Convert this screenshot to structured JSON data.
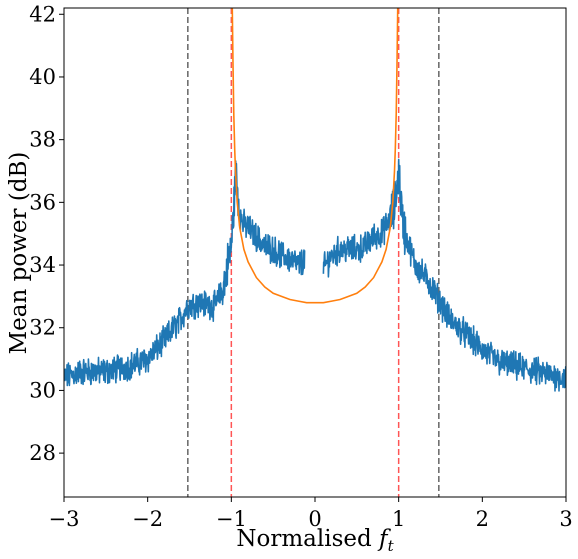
{
  "chart_data": {
    "type": "line",
    "title": "",
    "xlabel": "Normalised",
    "xlabel_symbol": "f",
    "xlabel_subscript": "t",
    "ylabel": "Mean power (dB)",
    "xlim": [
      -3,
      3
    ],
    "ylim": [
      26.6,
      42.2
    ],
    "x_ticks": [
      -3,
      -2,
      -1,
      0,
      1,
      2,
      3
    ],
    "x_tick_labels": [
      "−3",
      "−2",
      "−1",
      "0",
      "1",
      "2",
      "3"
    ],
    "y_ticks": [
      28,
      30,
      32,
      34,
      36,
      38,
      40,
      42
    ],
    "y_tick_labels": [
      "28",
      "30",
      "32",
      "34",
      "36",
      "38",
      "40",
      "42"
    ],
    "grid": false,
    "colors": {
      "measured": "#1f77b4",
      "model": "#ff7f0e",
      "red_lines": "#ff5555",
      "gray_lines": "#666666"
    },
    "vlines": [
      {
        "x": -1.52,
        "style": "dashed",
        "color": "gray"
      },
      {
        "x": -1.0,
        "style": "dashed",
        "color": "red"
      },
      {
        "x": 1.0,
        "style": "dashed",
        "color": "red"
      },
      {
        "x": 1.48,
        "style": "dashed",
        "color": "gray"
      }
    ],
    "series": [
      {
        "role": "measured",
        "style": "noisy",
        "x": [
          -3.0,
          -2.8,
          -2.5,
          -2.2,
          -2.0,
          -1.8,
          -1.6,
          -1.52,
          -1.4,
          -1.2,
          -1.1,
          -1.0,
          -0.98,
          -0.95,
          -0.92,
          -0.9,
          -0.85,
          -0.8,
          -0.7,
          -0.6,
          -0.5,
          -0.4,
          -0.3,
          -0.2,
          -0.15,
          -0.12,
          0.1,
          0.15,
          0.2,
          0.3,
          0.4,
          0.5,
          0.6,
          0.7,
          0.8,
          0.9,
          0.95,
          0.98,
          1.0,
          1.02,
          1.05,
          1.1,
          1.2,
          1.35,
          1.48,
          1.6,
          1.8,
          2.0,
          2.2,
          2.5,
          2.8,
          3.0
        ],
        "y": [
          30.4,
          30.6,
          30.6,
          30.8,
          31.0,
          31.6,
          32.3,
          32.7,
          32.8,
          32.7,
          33.2,
          34.6,
          35.4,
          36.9,
          36.3,
          35.6,
          35.3,
          35.2,
          34.9,
          34.6,
          34.5,
          34.3,
          34.2,
          34.0,
          34.1,
          34.2,
          33.9,
          34.1,
          34.3,
          34.5,
          34.5,
          34.5,
          34.6,
          34.9,
          35.0,
          35.5,
          35.8,
          36.5,
          37.1,
          36.3,
          35.3,
          34.8,
          34.0,
          33.5,
          32.9,
          32.3,
          31.8,
          31.3,
          30.9,
          30.7,
          30.5,
          30.4
        ],
        "gaps_between_x": [
          [
            -0.12,
            0.1
          ]
        ]
      },
      {
        "role": "model",
        "style": "smooth",
        "x": [
          -0.99,
          -0.98,
          -0.97,
          -0.96,
          -0.95,
          -0.93,
          -0.9,
          -0.85,
          -0.8,
          -0.7,
          -0.6,
          -0.5,
          -0.4,
          -0.3,
          -0.2,
          -0.1,
          0.0,
          0.1,
          0.2,
          0.3,
          0.4,
          0.5,
          0.6,
          0.7,
          0.8,
          0.85,
          0.9,
          0.93,
          0.95,
          0.96,
          0.97,
          0.98,
          0.99
        ],
        "y": [
          42.4,
          40.4,
          38.8,
          37.7,
          37.0,
          36.0,
          35.2,
          34.5,
          34.1,
          33.6,
          33.3,
          33.1,
          33.0,
          32.9,
          32.85,
          32.8,
          32.8,
          32.8,
          32.85,
          32.9,
          33.0,
          33.1,
          33.3,
          33.6,
          34.1,
          34.5,
          35.2,
          36.0,
          37.0,
          37.7,
          38.8,
          40.4,
          42.4
        ]
      }
    ]
  }
}
